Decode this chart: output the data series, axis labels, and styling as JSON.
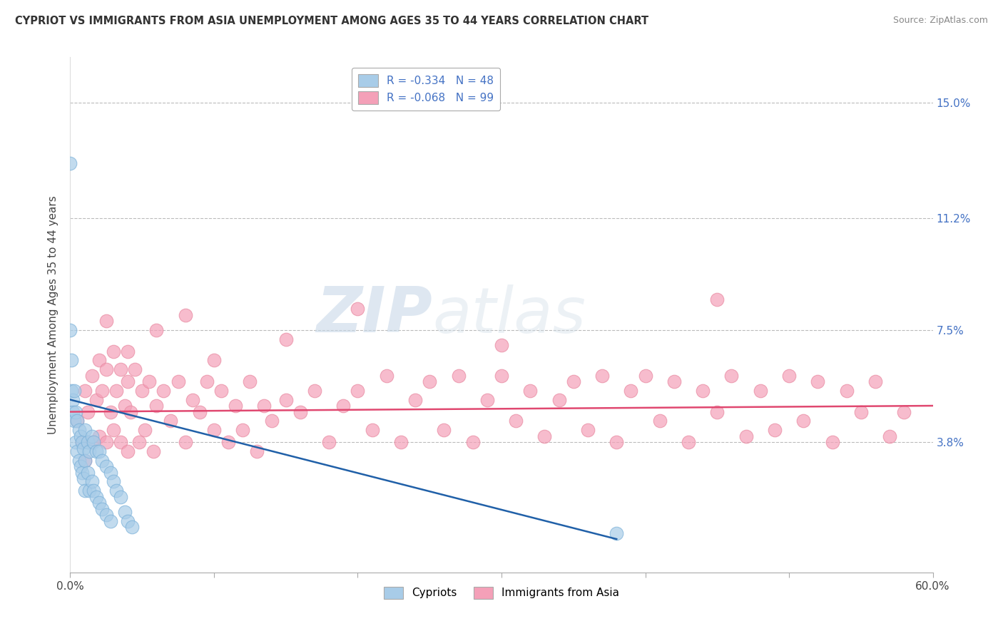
{
  "title": "CYPRIOT VS IMMIGRANTS FROM ASIA UNEMPLOYMENT AMONG AGES 35 TO 44 YEARS CORRELATION CHART",
  "source": "Source: ZipAtlas.com",
  "ylabel": "Unemployment Among Ages 35 to 44 years",
  "xlim": [
    0.0,
    0.6
  ],
  "ylim": [
    -0.005,
    0.165
  ],
  "ytick_positions": [
    0.038,
    0.075,
    0.112,
    0.15
  ],
  "ytick_labels": [
    "3.8%",
    "7.5%",
    "11.2%",
    "15.0%"
  ],
  "series1_name": "Cypriots",
  "series2_name": "Immigrants from Asia",
  "series1_color": "#a8cce8",
  "series2_color": "#f4a0b8",
  "series1_edge_color": "#7ab0d8",
  "series2_edge_color": "#e888a0",
  "series1_line_color": "#2060a8",
  "series2_line_color": "#e04870",
  "watermark_zip": "ZIP",
  "watermark_atlas": "atlas",
  "background_color": "#ffffff",
  "grid_color": "#bbbbbb",
  "right_label_color": "#4472c4",
  "legend_R1": "R = -0.334",
  "legend_N1": "N = 48",
  "legend_R2": "R = -0.068",
  "legend_N2": "N = 99",
  "legend_text_color": "#4472c4",
  "legend_R_color": "#cc0000",
  "cypriot_x": [
    0.0,
    0.0,
    0.001,
    0.001,
    0.002,
    0.002,
    0.003,
    0.003,
    0.004,
    0.004,
    0.005,
    0.005,
    0.006,
    0.006,
    0.007,
    0.007,
    0.008,
    0.008,
    0.009,
    0.009,
    0.01,
    0.01,
    0.01,
    0.012,
    0.012,
    0.013,
    0.013,
    0.015,
    0.015,
    0.016,
    0.016,
    0.018,
    0.018,
    0.02,
    0.02,
    0.022,
    0.022,
    0.025,
    0.025,
    0.028,
    0.028,
    0.03,
    0.032,
    0.035,
    0.038,
    0.04,
    0.043,
    0.38
  ],
  "cypriot_y": [
    0.13,
    0.075,
    0.065,
    0.055,
    0.052,
    0.048,
    0.055,
    0.045,
    0.048,
    0.038,
    0.045,
    0.035,
    0.042,
    0.032,
    0.04,
    0.03,
    0.038,
    0.028,
    0.036,
    0.026,
    0.042,
    0.032,
    0.022,
    0.038,
    0.028,
    0.035,
    0.022,
    0.04,
    0.025,
    0.038,
    0.022,
    0.035,
    0.02,
    0.035,
    0.018,
    0.032,
    0.016,
    0.03,
    0.014,
    0.028,
    0.012,
    0.025,
    0.022,
    0.02,
    0.015,
    0.012,
    0.01,
    0.008
  ],
  "asia_x": [
    0.005,
    0.008,
    0.01,
    0.01,
    0.012,
    0.015,
    0.015,
    0.018,
    0.02,
    0.02,
    0.022,
    0.025,
    0.025,
    0.028,
    0.03,
    0.03,
    0.032,
    0.035,
    0.035,
    0.038,
    0.04,
    0.04,
    0.042,
    0.045,
    0.048,
    0.05,
    0.052,
    0.055,
    0.058,
    0.06,
    0.065,
    0.07,
    0.075,
    0.08,
    0.085,
    0.09,
    0.095,
    0.1,
    0.105,
    0.11,
    0.115,
    0.12,
    0.125,
    0.13,
    0.135,
    0.14,
    0.15,
    0.16,
    0.17,
    0.18,
    0.19,
    0.2,
    0.21,
    0.22,
    0.23,
    0.24,
    0.25,
    0.26,
    0.27,
    0.28,
    0.29,
    0.3,
    0.31,
    0.32,
    0.33,
    0.34,
    0.35,
    0.36,
    0.37,
    0.38,
    0.39,
    0.4,
    0.41,
    0.42,
    0.43,
    0.44,
    0.45,
    0.46,
    0.47,
    0.48,
    0.49,
    0.5,
    0.51,
    0.52,
    0.53,
    0.54,
    0.55,
    0.56,
    0.57,
    0.58,
    0.025,
    0.04,
    0.06,
    0.08,
    0.1,
    0.15,
    0.2,
    0.3,
    0.45
  ],
  "asia_y": [
    0.045,
    0.038,
    0.055,
    0.032,
    0.048,
    0.06,
    0.038,
    0.052,
    0.065,
    0.04,
    0.055,
    0.062,
    0.038,
    0.048,
    0.068,
    0.042,
    0.055,
    0.062,
    0.038,
    0.05,
    0.058,
    0.035,
    0.048,
    0.062,
    0.038,
    0.055,
    0.042,
    0.058,
    0.035,
    0.05,
    0.055,
    0.045,
    0.058,
    0.038,
    0.052,
    0.048,
    0.058,
    0.042,
    0.055,
    0.038,
    0.05,
    0.042,
    0.058,
    0.035,
    0.05,
    0.045,
    0.052,
    0.048,
    0.055,
    0.038,
    0.05,
    0.055,
    0.042,
    0.06,
    0.038,
    0.052,
    0.058,
    0.042,
    0.06,
    0.038,
    0.052,
    0.06,
    0.045,
    0.055,
    0.04,
    0.052,
    0.058,
    0.042,
    0.06,
    0.038,
    0.055,
    0.06,
    0.045,
    0.058,
    0.038,
    0.055,
    0.048,
    0.06,
    0.04,
    0.055,
    0.042,
    0.06,
    0.045,
    0.058,
    0.038,
    0.055,
    0.048,
    0.058,
    0.04,
    0.048,
    0.078,
    0.068,
    0.075,
    0.08,
    0.065,
    0.072,
    0.082,
    0.07,
    0.085
  ]
}
